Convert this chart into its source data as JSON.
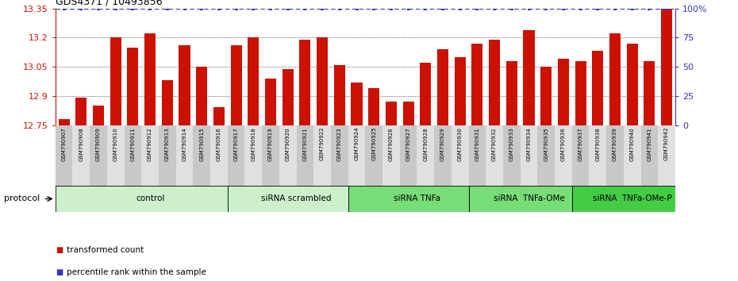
{
  "title": "GDS4371 / 10493856",
  "samples": [
    "GSM790907",
    "GSM790908",
    "GSM790909",
    "GSM790910",
    "GSM790911",
    "GSM790912",
    "GSM790913",
    "GSM790914",
    "GSM790915",
    "GSM790916",
    "GSM790917",
    "GSM790918",
    "GSM790919",
    "GSM790920",
    "GSM790921",
    "GSM790922",
    "GSM790923",
    "GSM790924",
    "GSM790925",
    "GSM790926",
    "GSM790927",
    "GSM790928",
    "GSM790929",
    "GSM790930",
    "GSM790931",
    "GSM790932",
    "GSM790933",
    "GSM790934",
    "GSM790935",
    "GSM790936",
    "GSM790937",
    "GSM790938",
    "GSM790939",
    "GSM790940",
    "GSM790941",
    "GSM790942"
  ],
  "values": [
    12.78,
    12.89,
    12.85,
    13.2,
    13.15,
    13.22,
    12.98,
    13.16,
    13.05,
    12.84,
    13.16,
    13.2,
    12.99,
    13.04,
    13.19,
    13.2,
    13.06,
    12.97,
    12.94,
    12.87,
    12.87,
    13.07,
    13.14,
    13.1,
    13.17,
    13.19,
    13.08,
    13.24,
    13.05,
    13.09,
    13.08,
    13.13,
    13.22,
    13.17,
    13.08,
    13.35
  ],
  "bar_color": "#cc1100",
  "percentile_color": "#3333cc",
  "ylim": [
    12.75,
    13.35
  ],
  "y_ticks": [
    12.75,
    12.9,
    13.05,
    13.2,
    13.35
  ],
  "y_tick_labels": [
    "12.75",
    "12.9",
    "13.05",
    "13.2",
    "13.35"
  ],
  "right_y_ticks": [
    0,
    25,
    50,
    75,
    100
  ],
  "right_y_tick_labels": [
    "0",
    "25",
    "50",
    "75",
    "100%"
  ],
  "groups": [
    {
      "label": "control",
      "start": 0,
      "end": 10,
      "color": "#ccf0cc"
    },
    {
      "label": "siRNA scrambled",
      "start": 10,
      "end": 17,
      "color": "#ccf0cc"
    },
    {
      "label": "siRNA TNFa",
      "start": 17,
      "end": 24,
      "color": "#77dd77"
    },
    {
      "label": "siRNA  TNFa-OMe",
      "start": 24,
      "end": 30,
      "color": "#77dd77"
    },
    {
      "label": "siRNA  TNFa-OMe-P",
      "start": 30,
      "end": 36,
      "color": "#44cc44"
    }
  ],
  "protocol_label": "protocol",
  "legend_items": [
    {
      "color": "#cc1100",
      "label": "transformed count"
    },
    {
      "color": "#3333cc",
      "label": "percentile rank within the sample"
    }
  ]
}
